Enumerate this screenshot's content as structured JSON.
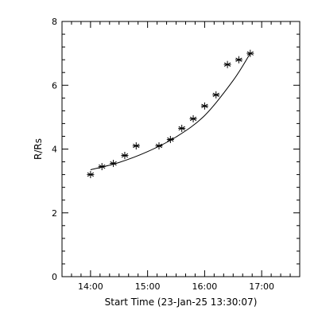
{
  "chart_data": {
    "type": "scatter",
    "xlabel": "Start Time (23-Jan-25 13:30:07)",
    "ylabel": "R/Rs",
    "xlim": [
      "13:30",
      "17:40"
    ],
    "ylim": [
      0,
      8
    ],
    "x_ticks": [
      "14:00",
      "15:00",
      "16:00",
      "17:00"
    ],
    "y_ticks": [
      0,
      2,
      4,
      6,
      8
    ],
    "grid": false,
    "series": [
      {
        "marker": "asterisk",
        "x": [
          "14:00",
          "14:12",
          "14:24",
          "14:36",
          "14:48",
          "15:12",
          "15:24",
          "15:36",
          "15:48",
          "16:00",
          "16:12",
          "16:24",
          "16:36",
          "16:48"
        ],
        "y": [
          3.2,
          3.45,
          3.55,
          3.8,
          4.1,
          4.1,
          4.3,
          4.65,
          4.95,
          5.35,
          5.7,
          6.65,
          6.8,
          7.0
        ]
      }
    ],
    "fit_line": {
      "x": [
        "14:00",
        "14:30",
        "15:00",
        "15:30",
        "16:00",
        "16:30",
        "16:48"
      ],
      "y": [
        3.35,
        3.58,
        3.92,
        4.38,
        5.05,
        6.15,
        7.0
      ]
    },
    "colors": {
      "marks": "#000000",
      "background": "#ffffff"
    }
  }
}
